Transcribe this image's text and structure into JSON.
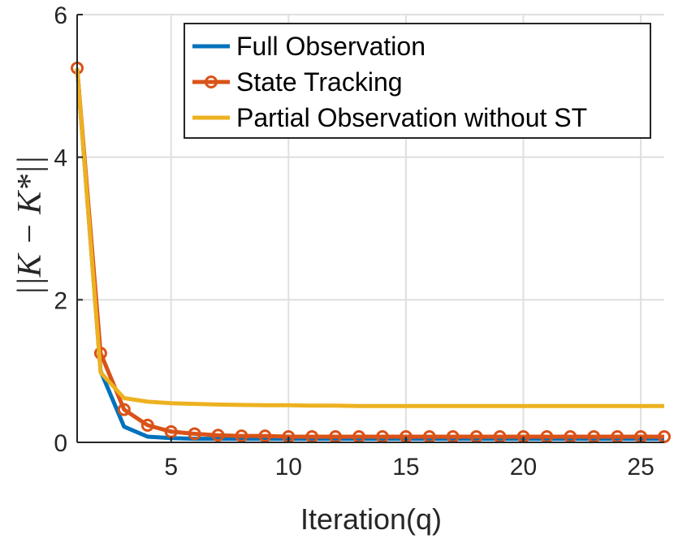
{
  "chart_data": {
    "type": "line",
    "xlabel": "Iteration(q)",
    "ylabel": "||K − K*||",
    "xlim": [
      1,
      26
    ],
    "ylim": [
      0,
      6
    ],
    "xticks": [
      5,
      10,
      15,
      20,
      25
    ],
    "yticks": [
      0,
      2,
      4,
      6
    ],
    "grid": true,
    "legend_position": "top-right",
    "series": [
      {
        "name": "Full Observation",
        "color": "#0072BD",
        "marker": "none",
        "x": [
          1,
          2,
          3,
          4,
          5,
          6,
          7,
          8,
          9,
          10,
          11,
          12,
          13,
          14,
          15,
          16,
          17,
          18,
          19,
          20,
          21,
          22,
          23,
          24,
          25,
          26
        ],
        "y": [
          5.25,
          1.0,
          0.22,
          0.08,
          0.06,
          0.05,
          0.05,
          0.05,
          0.05,
          0.05,
          0.05,
          0.05,
          0.05,
          0.05,
          0.05,
          0.05,
          0.05,
          0.05,
          0.05,
          0.05,
          0.05,
          0.05,
          0.05,
          0.05,
          0.05,
          0.05
        ]
      },
      {
        "name": "State Tracking",
        "color": "#D95319",
        "marker": "circle",
        "x": [
          1,
          2,
          3,
          4,
          5,
          6,
          7,
          8,
          9,
          10,
          11,
          12,
          13,
          14,
          15,
          16,
          17,
          18,
          19,
          20,
          21,
          22,
          23,
          24,
          25,
          26
        ],
        "y": [
          5.25,
          1.25,
          0.46,
          0.24,
          0.15,
          0.12,
          0.1,
          0.09,
          0.09,
          0.08,
          0.08,
          0.08,
          0.08,
          0.08,
          0.08,
          0.08,
          0.08,
          0.08,
          0.08,
          0.08,
          0.08,
          0.08,
          0.08,
          0.08,
          0.08,
          0.08
        ]
      },
      {
        "name": "Partial Observation without ST",
        "color": "#EDB120",
        "marker": "none",
        "x": [
          1,
          2,
          3,
          4,
          5,
          6,
          7,
          8,
          9,
          10,
          11,
          12,
          13,
          14,
          15,
          16,
          17,
          18,
          19,
          20,
          21,
          22,
          23,
          24,
          25,
          26
        ],
        "y": [
          5.25,
          0.98,
          0.62,
          0.57,
          0.55,
          0.54,
          0.53,
          0.525,
          0.52,
          0.52,
          0.515,
          0.515,
          0.51,
          0.51,
          0.51,
          0.51,
          0.51,
          0.51,
          0.51,
          0.51,
          0.51,
          0.51,
          0.51,
          0.51,
          0.51,
          0.51
        ]
      }
    ]
  }
}
